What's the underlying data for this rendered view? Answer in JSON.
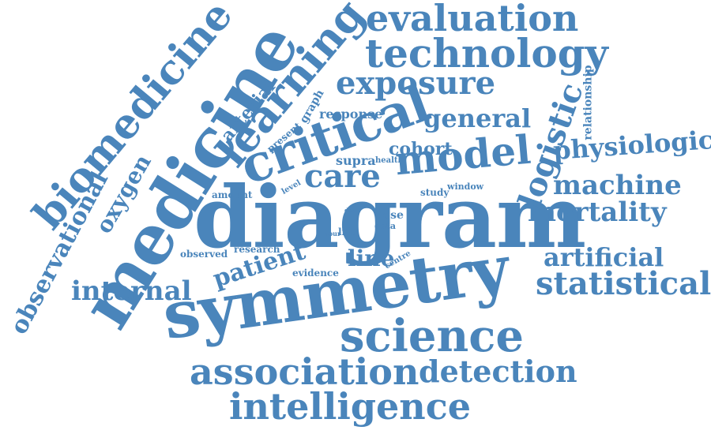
{
  "colors": {
    "text": "#4a85bb",
    "background": "#ffffff"
  },
  "words": {
    "symmetry": "symmetry",
    "diagram": "diagram",
    "medicine": "medicine",
    "science": "science",
    "intelligence": "intelligence",
    "association": "association",
    "detection": "detection",
    "statistical": "statistical",
    "artificial": "artificial",
    "mortality": "mortality",
    "machine": "machine",
    "physiologic": "physiologic",
    "logistic": "logistic",
    "model": "model",
    "care": "care",
    "critical": "critical",
    "learning": "learning",
    "biomedicine": "biomedicine",
    "evaluation": "evaluation",
    "technology": "technology",
    "exposure": "exposure",
    "general": "general",
    "cohort": "cohort",
    "internal": "internal",
    "observational": "observational",
    "oxygen": "oxygen",
    "arterial": "arterial",
    "patient": "patient",
    "line": "line",
    "relationship": "relationship",
    "response": "response",
    "graph": "graph",
    "present": "present",
    "supra": "supra",
    "health": "health",
    "level": "level",
    "amount": "amount",
    "study": "study",
    "window": "window",
    "day": "day",
    "dose": "dose",
    "data": "data",
    "hour": "hour",
    "life": "life",
    "observed": "observed",
    "research": "research",
    "evidence": "evidence",
    "centre": "centre"
  }
}
